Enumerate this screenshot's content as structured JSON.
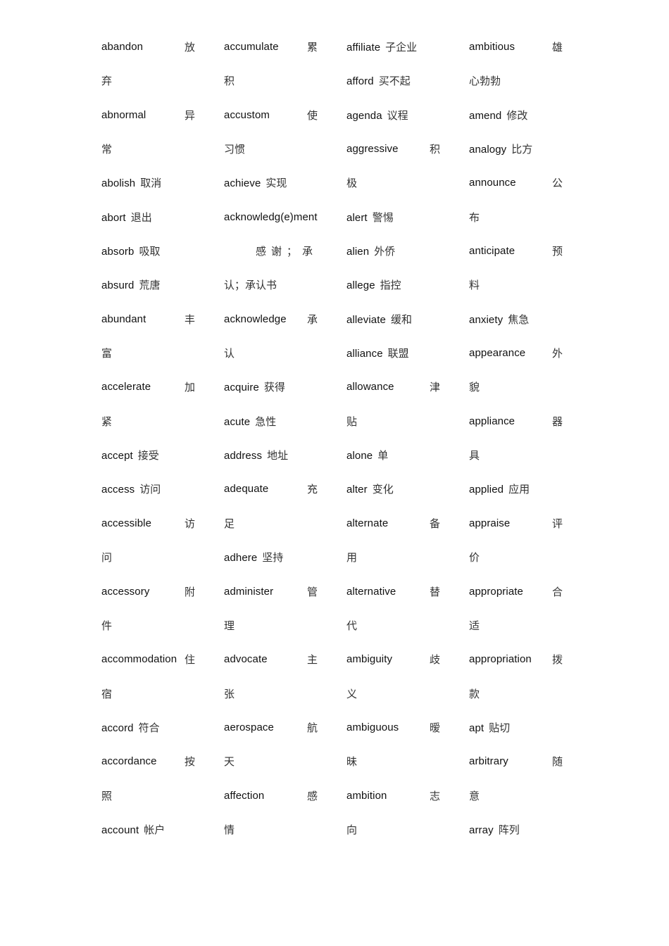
{
  "columns": [
    [
      {
        "en": "abandon",
        "zh": "放"
      },
      {
        "en": "",
        "zh": "弃"
      },
      {
        "en": "abnormal",
        "zh": "异"
      },
      {
        "en": "",
        "zh": "常"
      },
      {
        "en": "abolish",
        "zh": "取消"
      },
      {
        "en": "abort",
        "zh": "退出"
      },
      {
        "en": "absorb",
        "zh": "吸取"
      },
      {
        "en": "absurd",
        "zh": "荒唐"
      },
      {
        "en": "abundant",
        "zh": "丰"
      },
      {
        "en": "",
        "zh": "富"
      },
      {
        "en": "accelerate",
        "zh": "加"
      },
      {
        "en": "",
        "zh": "紧"
      },
      {
        "en": "accept",
        "zh": "接受"
      },
      {
        "en": "access",
        "zh": "访问"
      },
      {
        "en": "accessible",
        "zh": "访"
      },
      {
        "en": "",
        "zh": "问"
      },
      {
        "en": "accessory",
        "zh": "附"
      },
      {
        "en": "",
        "zh": "件"
      },
      {
        "en": "accommodation",
        "zh": "住"
      },
      {
        "en": "",
        "zh": "宿"
      },
      {
        "en": "accord",
        "zh": "符合"
      },
      {
        "en": "accordance",
        "zh": "按"
      },
      {
        "en": "",
        "zh": "照"
      },
      {
        "en": "account",
        "zh": "帐户"
      }
    ],
    [
      {
        "en": "accumulate",
        "zh": "累"
      },
      {
        "en": "",
        "zh": "积"
      },
      {
        "en": "accustom",
        "zh": "使"
      },
      {
        "en": "",
        "zh": "习惯"
      },
      {
        "en": "achieve",
        "zh": "实现"
      },
      {
        "en": "acknowledg(e)ment",
        "zh": ""
      },
      {
        "en": "",
        "zh": "感谢；承"
      },
      {
        "en": "",
        "zh": "认；承认书"
      },
      {
        "en": "acknowledge",
        "zh": "承"
      },
      {
        "en": "",
        "zh": "认"
      },
      {
        "en": "acquire",
        "zh": "获得"
      },
      {
        "en": "acute",
        "zh": "急性"
      },
      {
        "en": "address",
        "zh": "地址"
      },
      {
        "en": "adequate",
        "zh": "充"
      },
      {
        "en": "",
        "zh": "足"
      },
      {
        "en": "adhere",
        "zh": "坚持"
      },
      {
        "en": "administer",
        "zh": "管"
      },
      {
        "en": "",
        "zh": "理"
      },
      {
        "en": "advocate",
        "zh": "主"
      },
      {
        "en": "",
        "zh": "张"
      },
      {
        "en": "aerospace",
        "zh": "航"
      },
      {
        "en": "",
        "zh": "天"
      },
      {
        "en": "affection",
        "zh": "感"
      },
      {
        "en": "",
        "zh": "情"
      }
    ],
    [
      {
        "en": "affiliate",
        "zh": "子企业"
      },
      {
        "en": "afford",
        "zh": "买不起"
      },
      {
        "en": "agenda",
        "zh": "议程"
      },
      {
        "en": "aggressive",
        "zh": "积"
      },
      {
        "en": "",
        "zh": "极"
      },
      {
        "en": "alert",
        "zh": "警惕"
      },
      {
        "en": "alien",
        "zh": "外侨"
      },
      {
        "en": "allege",
        "zh": "指控"
      },
      {
        "en": "alleviate",
        "zh": "缓和"
      },
      {
        "en": "alliance",
        "zh": "联盟"
      },
      {
        "en": "allowance",
        "zh": "津"
      },
      {
        "en": "",
        "zh": "贴"
      },
      {
        "en": "alone",
        "zh": "单"
      },
      {
        "en": "alter",
        "zh": "变化"
      },
      {
        "en": "alternate",
        "zh": "备"
      },
      {
        "en": "",
        "zh": "用"
      },
      {
        "en": "alternative",
        "zh": "替"
      },
      {
        "en": "",
        "zh": "代"
      },
      {
        "en": "ambiguity",
        "zh": "歧"
      },
      {
        "en": "",
        "zh": "义"
      },
      {
        "en": "ambiguous",
        "zh": "暧"
      },
      {
        "en": "",
        "zh": "昧"
      },
      {
        "en": "ambition",
        "zh": "志"
      },
      {
        "en": "",
        "zh": "向"
      }
    ],
    [
      {
        "en": "ambitious",
        "zh": "雄"
      },
      {
        "en": "",
        "zh": "心勃勃"
      },
      {
        "en": "amend",
        "zh": "修改"
      },
      {
        "en": "analogy",
        "zh": "比方"
      },
      {
        "en": "announce",
        "zh": "公"
      },
      {
        "en": "",
        "zh": "布"
      },
      {
        "en": "anticipate",
        "zh": "预"
      },
      {
        "en": "",
        "zh": "料"
      },
      {
        "en": "anxiety",
        "zh": "焦急"
      },
      {
        "en": "appearance",
        "zh": "外"
      },
      {
        "en": "",
        "zh": "貌"
      },
      {
        "en": "appliance",
        "zh": "器"
      },
      {
        "en": "",
        "zh": "具"
      },
      {
        "en": "applied",
        "zh": "应用"
      },
      {
        "en": "appraise",
        "zh": "评"
      },
      {
        "en": "",
        "zh": "价"
      },
      {
        "en": "appropriate",
        "zh": "合"
      },
      {
        "en": "",
        "zh": "适"
      },
      {
        "en": "appropriation",
        "zh": "拨"
      },
      {
        "en": "",
        "zh": "款"
      },
      {
        "en": "apt",
        "zh": "贴切"
      },
      {
        "en": "arbitrary",
        "zh": "随"
      },
      {
        "en": "",
        "zh": "意"
      },
      {
        "en": "array",
        "zh": "阵列"
      }
    ]
  ]
}
